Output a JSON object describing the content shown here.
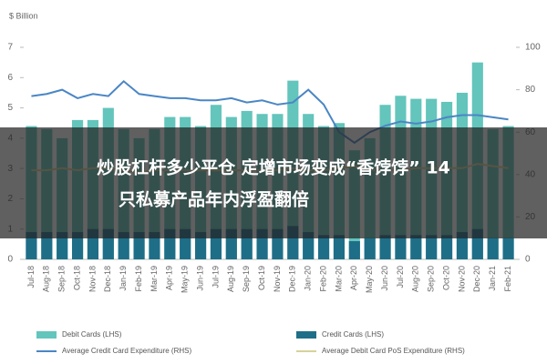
{
  "chart_data": {
    "type": "bar",
    "y_label": "$ Billion",
    "annotation": [
      "炒股杠杆多少平仓 定增市场变成“香饽饽” 14",
      "只私募产品年内浮盈翻倍"
    ],
    "categories": [
      "Jul-18",
      "Aug-18",
      "Sep-18",
      "Oct-18",
      "Nov-18",
      "Dec-18",
      "Jan-19",
      "Feb-19",
      "Mar-19",
      "Apr-19",
      "May-19",
      "Jun-19",
      "Jul-19",
      "Aug-19",
      "Sep-19",
      "Oct-19",
      "Nov-19",
      "Dec-19",
      "Jan-20",
      "Feb-20",
      "Mar-20",
      "Apr-20",
      "May-20",
      "Jun-20",
      "Jul-20",
      "Aug-20",
      "Sep-20",
      "Oct-20",
      "Nov-20",
      "Dec-20",
      "Jan-21",
      "Feb-21"
    ],
    "series": [
      {
        "name": "Debit Cards (LHS)",
        "color": "#63c5bc",
        "kind": "bar",
        "values": [
          4.4,
          4.3,
          4.0,
          4.6,
          4.6,
          5.0,
          4.3,
          4.0,
          4.3,
          4.7,
          4.7,
          4.4,
          5.1,
          4.7,
          4.9,
          4.8,
          4.8,
          5.9,
          4.8,
          4.4,
          4.5,
          3.6,
          4.0,
          5.1,
          5.4,
          5.3,
          5.3,
          5.2,
          5.5,
          6.5,
          4.3,
          4.4
        ]
      },
      {
        "name": "Credit Cards (LHS)",
        "color": "#1f6e88",
        "kind": "bar",
        "values": [
          0.9,
          0.9,
          0.9,
          0.9,
          1.0,
          1.0,
          0.9,
          0.9,
          0.9,
          1.0,
          1.0,
          0.9,
          1.0,
          1.0,
          1.0,
          1.0,
          1.0,
          1.1,
          0.9,
          0.8,
          0.8,
          0.6,
          0.7,
          0.8,
          0.8,
          0.8,
          0.8,
          0.8,
          0.9,
          1.0,
          0.7,
          0.7
        ]
      },
      {
        "name": "Average Credit Card Expenditure (RHS)",
        "color": "#4a86c5",
        "kind": "line",
        "axis": "y2",
        "values": [
          77,
          78,
          80,
          76,
          78,
          77,
          84,
          78,
          77,
          76,
          76,
          75,
          75,
          76,
          74,
          75,
          73,
          74,
          80,
          73,
          60,
          55,
          60,
          63,
          65,
          64,
          65,
          67,
          68,
          68,
          67,
          66
        ]
      },
      {
        "name": "Average Debit Card PoS Expenditure (RHS)",
        "color": "#d6d39a",
        "kind": "line",
        "axis": "y2",
        "values": [
          42,
          42,
          43,
          42,
          43,
          43,
          42,
          41,
          42,
          42,
          42,
          42,
          42,
          42,
          42,
          42,
          42,
          43,
          42,
          42,
          43,
          44,
          42,
          42,
          42,
          43,
          43,
          43,
          43,
          45,
          44,
          43
        ]
      }
    ],
    "ylim": [
      0,
      7
    ],
    "yticks": [
      0,
      1,
      2,
      3,
      4,
      5,
      6,
      7
    ],
    "y2lim": [
      0,
      100
    ],
    "y2ticks": [
      0,
      20,
      40,
      60,
      80,
      100
    ]
  }
}
